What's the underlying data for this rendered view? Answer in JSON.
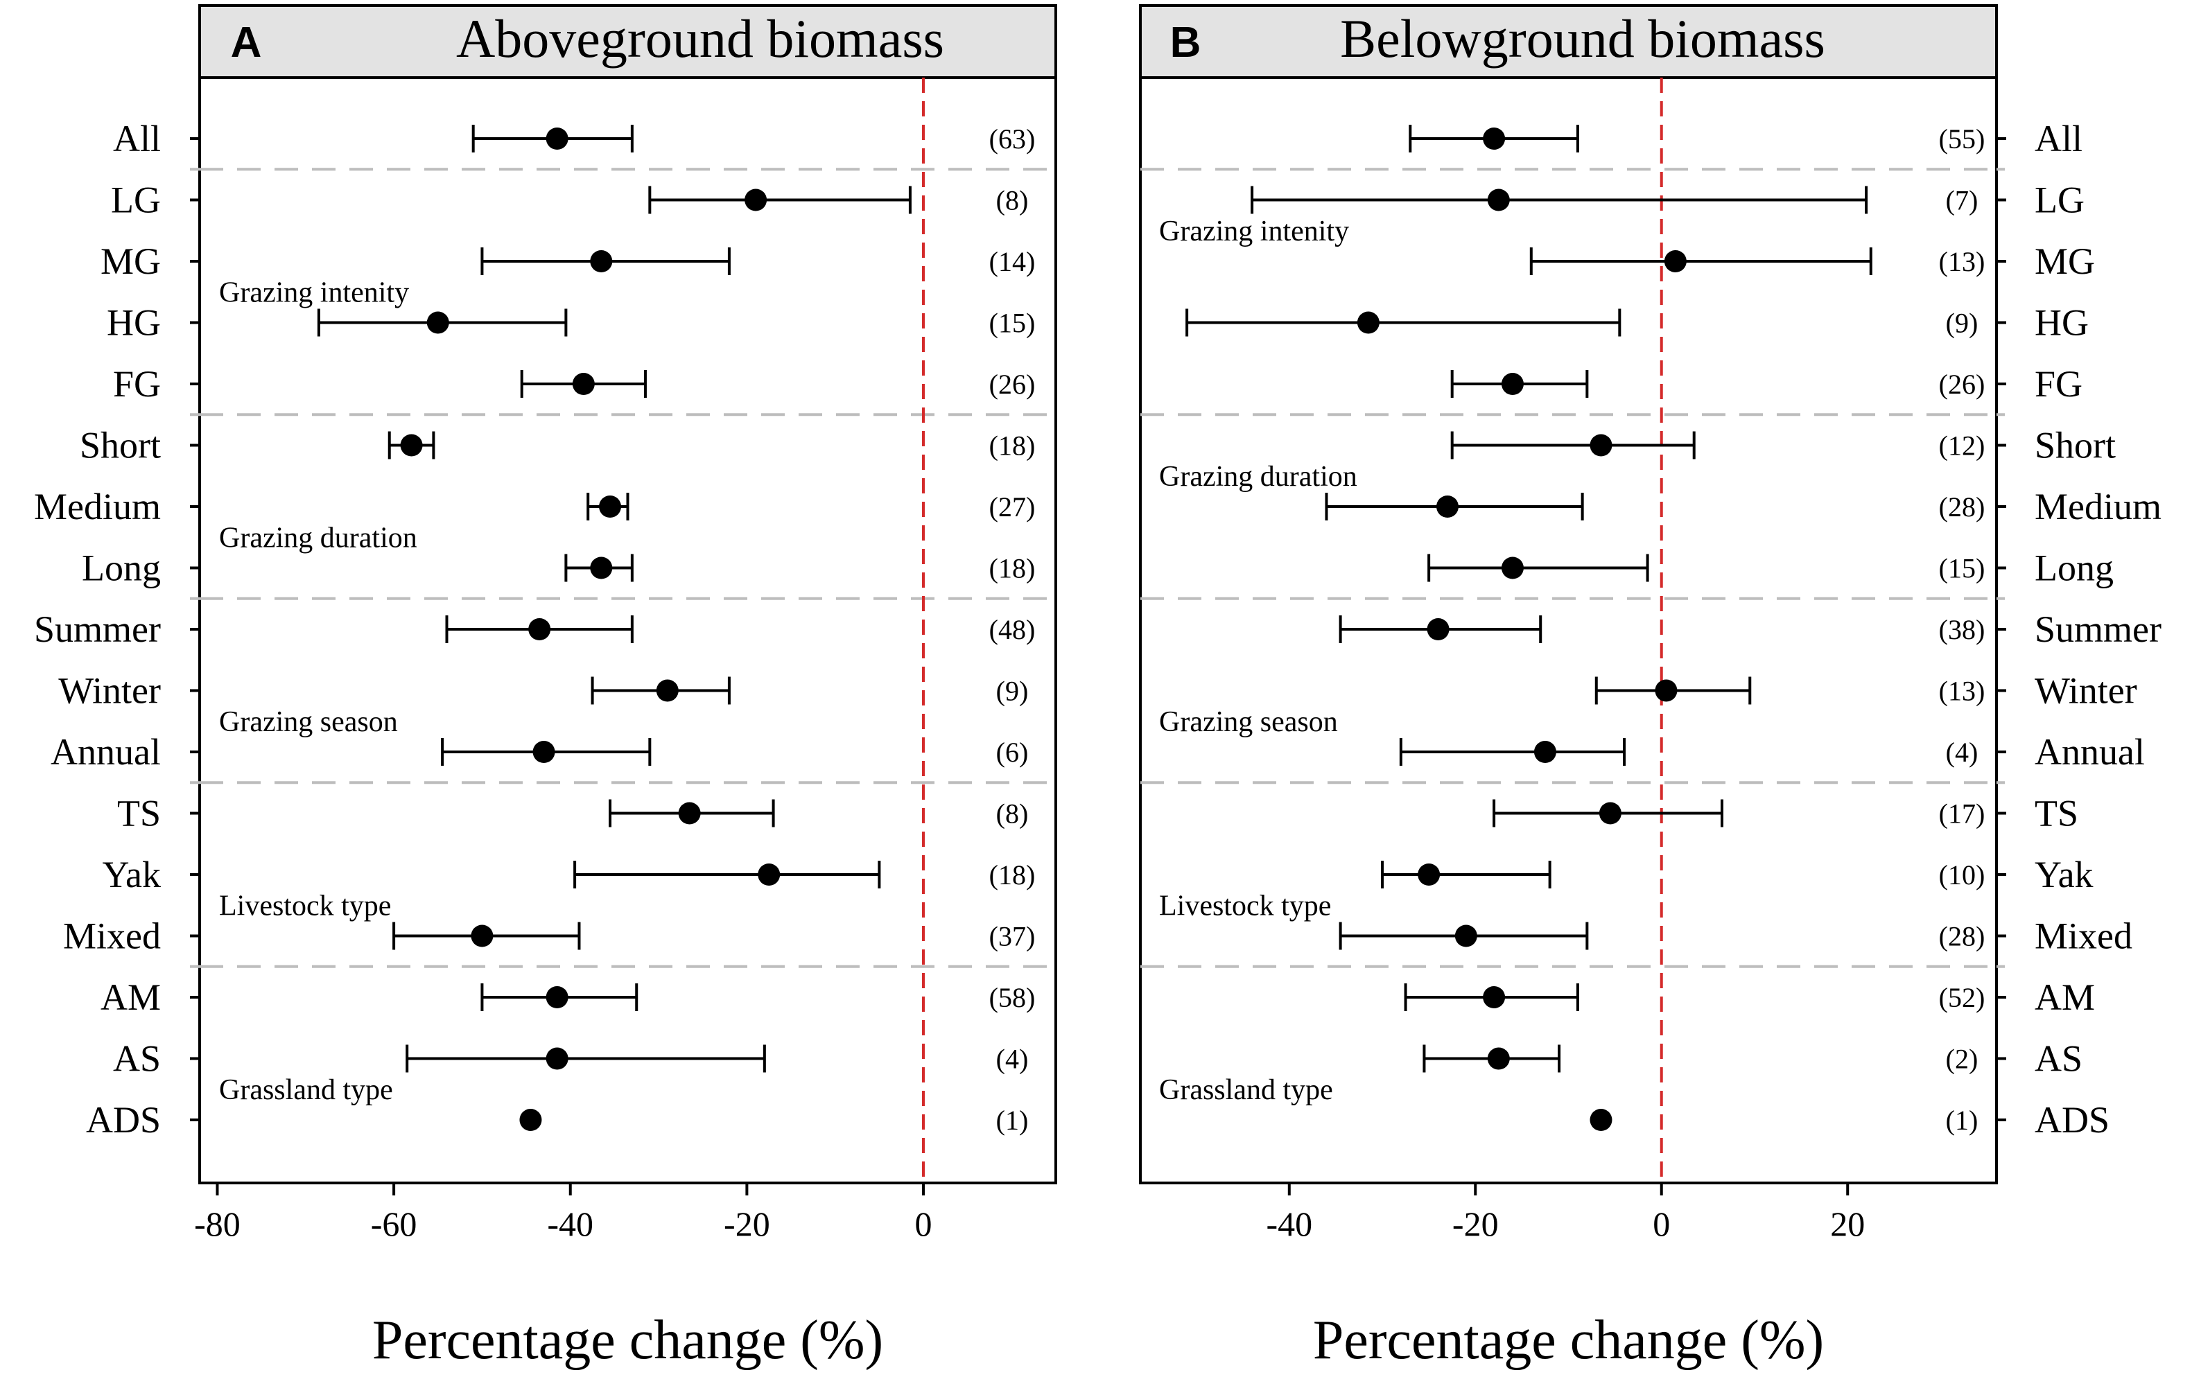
{
  "chart_data": [
    {
      "type": "forest",
      "panel_letter": "A",
      "title": "Aboveground biomass",
      "xlabel": "Percentage change (%)",
      "xlim": [
        -82,
        15
      ],
      "xticks": [
        -80,
        -60,
        -40,
        -20,
        0
      ],
      "xtick_labels": [
        "-80",
        "-60",
        "-40",
        "-20",
        "0"
      ],
      "reference_line": 0,
      "category_side": "left",
      "rows": [
        {
          "label": "All",
          "mean": -41.5,
          "lower": -51,
          "upper": -33,
          "n": "(63)"
        },
        {
          "label": "LG",
          "mean": -19,
          "lower": -31,
          "upper": -1.5,
          "n": "(8)"
        },
        {
          "label": "MG",
          "mean": -36.5,
          "lower": -50,
          "upper": -22,
          "n": "(14)"
        },
        {
          "label": "HG",
          "mean": -55,
          "lower": -68.5,
          "upper": -40.5,
          "n": "(15)"
        },
        {
          "label": "FG",
          "mean": -38.5,
          "lower": -45.5,
          "upper": -31.5,
          "n": "(26)"
        },
        {
          "label": "Short",
          "mean": -58,
          "lower": -60.5,
          "upper": -55.5,
          "n": "(18)"
        },
        {
          "label": "Medium",
          "mean": -35.5,
          "lower": -38,
          "upper": -33.5,
          "n": "(27)"
        },
        {
          "label": "Long",
          "mean": -36.5,
          "lower": -40.5,
          "upper": -33,
          "n": "(18)"
        },
        {
          "label": "Summer",
          "mean": -43.5,
          "lower": -54,
          "upper": -33,
          "n": "(48)"
        },
        {
          "label": "Winter",
          "mean": -29,
          "lower": -37.5,
          "upper": -22,
          "n": "(9)"
        },
        {
          "label": "Annual",
          "mean": -43,
          "lower": -54.5,
          "upper": -31,
          "n": "(6)"
        },
        {
          "label": "TS",
          "mean": -26.5,
          "lower": -35.5,
          "upper": -17,
          "n": "(8)"
        },
        {
          "label": "Yak",
          "mean": -17.5,
          "lower": -39.5,
          "upper": -5,
          "n": "(18)"
        },
        {
          "label": "Mixed",
          "mean": -50,
          "lower": -60,
          "upper": -39,
          "n": "(37)"
        },
        {
          "label": "AM",
          "mean": -41.5,
          "lower": -50,
          "upper": -32.5,
          "n": "(58)"
        },
        {
          "label": "AS",
          "mean": -41.5,
          "lower": -58.5,
          "upper": -18,
          "n": "(4)"
        },
        {
          "label": "ADS",
          "mean": -44.5,
          "lower": null,
          "upper": null,
          "n": "(1)"
        }
      ],
      "group_labels": [
        {
          "text": "Grazing intenity",
          "after_row": 2
        },
        {
          "text": "Grazing duration",
          "after_row": 6
        },
        {
          "text": "Grazing season",
          "after_row": 9
        },
        {
          "text": "Livestock type",
          "after_row": 12
        },
        {
          "text": "Grassland type",
          "after_row": 15
        }
      ],
      "separators_after_rows": [
        0,
        4,
        7,
        10,
        13
      ]
    },
    {
      "type": "forest",
      "panel_letter": "B",
      "title": "Belowground biomass",
      "xlabel": "Percentage change (%)",
      "xlim": [
        -56,
        36
      ],
      "xticks": [
        -40,
        -20,
        0,
        20
      ],
      "xtick_labels": [
        "-40",
        "-20",
        "0",
        "20"
      ],
      "reference_line": 0,
      "category_side": "right",
      "rows": [
        {
          "label": "All",
          "mean": -18,
          "lower": -27,
          "upper": -9,
          "n": "(55)"
        },
        {
          "label": "LG",
          "mean": -17.5,
          "lower": -44,
          "upper": 22,
          "n": "(7)"
        },
        {
          "label": "MG",
          "mean": 1.5,
          "lower": -14,
          "upper": 22.5,
          "n": "(13)"
        },
        {
          "label": "HG",
          "mean": -31.5,
          "lower": -51,
          "upper": -4.5,
          "n": "(9)"
        },
        {
          "label": "FG",
          "mean": -16,
          "lower": -22.5,
          "upper": -8,
          "n": "(26)"
        },
        {
          "label": "Short",
          "mean": -6.5,
          "lower": -22.5,
          "upper": 3.5,
          "n": "(12)"
        },
        {
          "label": "Medium",
          "mean": -23,
          "lower": -36,
          "upper": -8.5,
          "n": "(28)"
        },
        {
          "label": "Long",
          "mean": -16,
          "lower": -25,
          "upper": -1.5,
          "n": "(15)"
        },
        {
          "label": "Summer",
          "mean": -24,
          "lower": -34.5,
          "upper": -13,
          "n": "(38)"
        },
        {
          "label": "Winter",
          "mean": 0.5,
          "lower": -7,
          "upper": 9.5,
          "n": "(13)"
        },
        {
          "label": "Annual",
          "mean": -12.5,
          "lower": -28,
          "upper": -4,
          "n": "(4)"
        },
        {
          "label": "TS",
          "mean": -5.5,
          "lower": -18,
          "upper": 6.5,
          "n": "(17)"
        },
        {
          "label": "Yak",
          "mean": -25,
          "lower": -30,
          "upper": -12,
          "n": "(10)"
        },
        {
          "label": "Mixed",
          "mean": -21,
          "lower": -34.5,
          "upper": -8,
          "n": "(28)"
        },
        {
          "label": "AM",
          "mean": -18,
          "lower": -27.5,
          "upper": -9,
          "n": "(52)"
        },
        {
          "label": "AS",
          "mean": -17.5,
          "lower": -25.5,
          "upper": -11,
          "n": "(2)"
        },
        {
          "label": "ADS",
          "mean": -6.5,
          "lower": null,
          "upper": null,
          "n": "(1)"
        }
      ],
      "group_labels": [
        {
          "text": "Grazing intenity",
          "after_row": 1
        },
        {
          "text": "Grazing duration",
          "after_row": 5
        },
        {
          "text": "Grazing season",
          "after_row": 9
        },
        {
          "text": "Livestock type",
          "after_row": 12
        },
        {
          "text": "Grassland type",
          "after_row": 15
        }
      ],
      "separators_after_rows": [
        0,
        4,
        7,
        10,
        13
      ]
    }
  ],
  "colors": {
    "reference_line": "#d42a2a",
    "separator": "#bdbdbd",
    "title_bar": "#e3e3e3",
    "ink": "#000000"
  }
}
